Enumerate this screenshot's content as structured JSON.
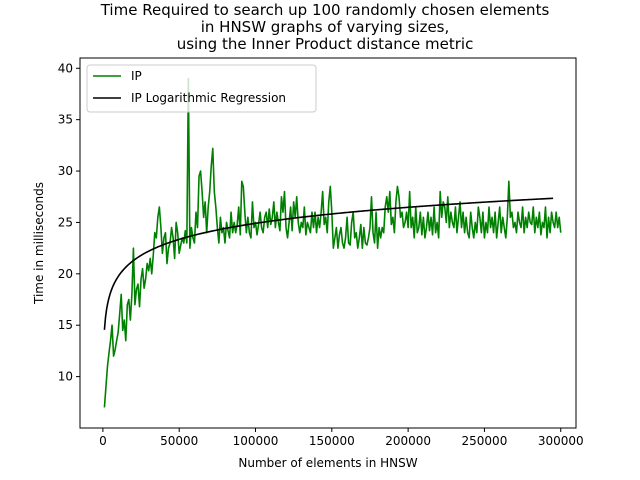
{
  "chart_data": {
    "type": "line",
    "title": [
      "Time Required to search up 100 randomly chosen elements",
      "in HNSW graphs of varying sizes,",
      "using the Inner Product distance metric"
    ],
    "xlabel": "Number of elements in HNSW",
    "ylabel": "Time in milliseconds",
    "xlim": [
      -15000,
      310000
    ],
    "ylim": [
      5,
      41
    ],
    "xticks": [
      0,
      50000,
      100000,
      150000,
      200000,
      250000,
      300000
    ],
    "yticks": [
      10,
      15,
      20,
      25,
      30,
      35,
      40
    ],
    "grid": false,
    "legend_position": "top-left",
    "series": [
      {
        "name": "IP",
        "color": "#008000",
        "x_start": 1000,
        "x_step": 1000,
        "y": [
          7.0,
          9.0,
          11.0,
          12.3,
          13.5,
          15.0,
          12.0,
          12.6,
          13.5,
          14.3,
          16.1,
          18.0,
          14.5,
          15.5,
          13.5,
          17.0,
          17.5,
          15.5,
          18.0,
          22.5,
          17.0,
          18.5,
          19.0,
          16.8,
          19.5,
          20.5,
          18.6,
          19.5,
          21.0,
          20.3,
          21.5,
          20.0,
          21.8,
          24.0,
          23.5,
          25.5,
          26.5,
          24.5,
          22.0,
          23.5,
          24.0,
          21.0,
          22.5,
          23.0,
          24.5,
          23.5,
          21.5,
          25.0,
          24.0,
          22.0,
          22.8,
          23.5,
          23.0,
          24.2,
          23.0,
          39.0,
          22.5,
          24.5,
          23.5,
          23.0,
          26.0,
          24.5,
          29.5,
          30.0,
          28.0,
          25.5,
          27.0,
          24.0,
          26.5,
          28.0,
          30.5,
          32.2,
          28.0,
          26.5,
          24.5,
          23.0,
          25.5,
          24.0,
          24.5,
          23.0,
          25.0,
          24.2,
          23.5,
          26.0,
          24.0,
          25.0,
          24.0,
          24.8,
          26.5,
          23.8,
          29.0,
          28.5,
          26.0,
          24.0,
          25.5,
          24.0,
          23.5,
          27.0,
          24.5,
          25.0,
          23.8,
          24.8,
          26.0,
          24.5,
          24.0,
          25.5,
          26.0,
          24.5,
          26.3,
          24.8,
          25.5,
          27.0,
          24.5,
          26.0,
          25.0,
          24.2,
          27.5,
          26.0,
          28.0,
          24.5,
          23.5,
          25.0,
          26.5,
          24.2,
          27.0,
          25.5,
          27.5,
          25.0,
          24.0,
          25.0,
          24.5,
          26.5,
          23.8,
          25.0,
          24.5,
          24.0,
          26.0,
          24.5,
          26.0,
          24.0,
          25.5,
          24.5,
          26.0,
          28.0,
          24.8,
          25.5,
          24.0,
          27.0,
          28.5,
          26.0,
          22.5,
          23.5,
          24.5,
          22.5,
          23.8,
          24.5,
          23.0,
          22.5,
          23.5,
          25.5,
          23.0,
          22.8,
          25.0,
          26.0,
          23.5,
          24.0,
          22.5,
          23.5,
          24.8,
          22.5,
          24.5,
          23.0,
          22.8,
          23.5,
          24.5,
          27.5,
          24.0,
          23.0,
          26.0,
          22.5,
          24.5,
          23.5,
          24.5,
          24.0,
          26.5,
          27.5,
          26.0,
          28.0,
          24.8,
          25.5,
          24.0,
          27.0,
          28.5,
          27.5,
          25.5,
          26.0,
          24.5,
          25.0,
          26.0,
          24.5,
          28.0,
          24.5,
          25.5,
          23.5,
          26.5,
          24.0,
          24.5,
          26.0,
          23.8,
          25.5,
          23.5,
          24.5,
          26.0,
          24.2,
          25.5,
          23.8,
          26.5,
          24.0,
          25.0,
          23.5,
          28.0,
          25.5,
          27.0,
          26.5,
          25.0,
          27.5,
          24.5,
          26.0,
          25.0,
          24.5,
          26.5,
          24.0,
          25.5,
          27.0,
          24.5,
          26.0,
          24.0,
          25.5,
          24.0,
          23.5,
          26.0,
          24.5,
          23.5,
          25.0,
          24.0,
          26.5,
          25.5,
          24.0,
          26.0,
          23.5,
          25.0,
          24.0,
          26.5,
          24.5,
          25.5,
          24.0,
          26.0,
          23.5,
          25.0,
          26.5,
          24.0,
          25.5,
          24.5,
          23.5,
          25.5,
          29.0,
          25.5,
          26.0,
          24.5,
          25.0,
          24.0,
          26.0,
          25.0,
          24.5,
          26.5,
          24.0,
          25.5,
          24.5,
          26.0,
          25.0,
          24.8,
          26.5,
          24.0,
          25.5,
          24.5,
          26.0,
          23.8,
          25.0,
          24.5,
          26.5,
          23.5,
          25.5,
          24.0,
          26.0,
          25.0,
          24.5,
          26.0,
          24.5,
          25.5,
          24.0
        ]
      },
      {
        "name": "IP Logarithmic Regression",
        "color": "#000000",
        "model": "y = a + b*ln(x)",
        "a": -0.99,
        "b": 2.25,
        "x_range": [
          1000,
          295000
        ]
      }
    ]
  }
}
